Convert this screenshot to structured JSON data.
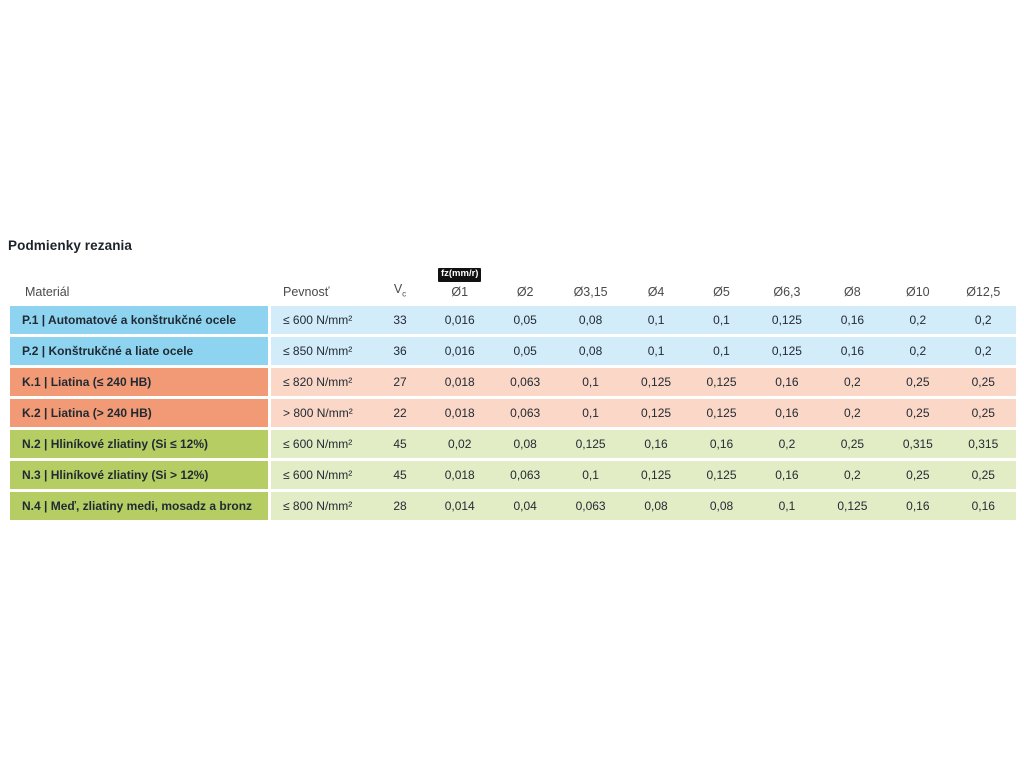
{
  "title": "Podmienky rezania",
  "header": {
    "material": "Materiál",
    "pevnost": "Pevnosť",
    "vc": "V",
    "vc_sub": "c",
    "fz_unit": "fz(mm/r)"
  },
  "chart_data": {
    "type": "table",
    "title": "Podmienky rezania",
    "columns": [
      "Materiál",
      "Pevnosť",
      "Vc",
      "Ø1",
      "Ø2",
      "Ø3,15",
      "Ø4",
      "Ø5",
      "Ø6,3",
      "Ø8",
      "Ø10",
      "Ø12,5"
    ],
    "fz_unit_label": "fz(mm/r)",
    "diameter_columns": [
      "Ø1",
      "Ø2",
      "Ø3,15",
      "Ø4",
      "Ø5",
      "Ø6,3",
      "Ø8",
      "Ø10",
      "Ø12,5"
    ],
    "rows": [
      {
        "group": "P",
        "material": "P.1 | Automatové a konštrukčné ocele",
        "pevnost": "≤ 600 N/mm²",
        "vc": "33",
        "fz": [
          "0,016",
          "0,05",
          "0,08",
          "0,1",
          "0,1",
          "0,125",
          "0,16",
          "0,2",
          "0,2"
        ]
      },
      {
        "group": "P",
        "material": "P.2 | Konštrukčné a liate ocele",
        "pevnost": "≤ 850 N/mm²",
        "vc": "36",
        "fz": [
          "0,016",
          "0,05",
          "0,08",
          "0,1",
          "0,1",
          "0,125",
          "0,16",
          "0,2",
          "0,2"
        ]
      },
      {
        "group": "K",
        "material": "K.1 | Liatina (≤ 240 HB)",
        "pevnost": "≤ 820 N/mm²",
        "vc": "27",
        "fz": [
          "0,018",
          "0,063",
          "0,1",
          "0,125",
          "0,125",
          "0,16",
          "0,2",
          "0,25",
          "0,25"
        ]
      },
      {
        "group": "K",
        "material": "K.2 | Liatina (> 240 HB)",
        "pevnost": "> 800 N/mm²",
        "vc": "22",
        "fz": [
          "0,018",
          "0,063",
          "0,1",
          "0,125",
          "0,125",
          "0,16",
          "0,2",
          "0,25",
          "0,25"
        ]
      },
      {
        "group": "N",
        "material": "N.2 | Hliníkové zliatiny (Si ≤ 12%)",
        "pevnost": "≤ 600 N/mm²",
        "vc": "45",
        "fz": [
          "0,02",
          "0,08",
          "0,125",
          "0,16",
          "0,16",
          "0,2",
          "0,25",
          "0,315",
          "0,315"
        ]
      },
      {
        "group": "N",
        "material": "N.3 | Hliníkové zliatiny (Si > 12%)",
        "pevnost": "≤ 600 N/mm²",
        "vc": "45",
        "fz": [
          "0,018",
          "0,063",
          "0,1",
          "0,125",
          "0,125",
          "0,16",
          "0,2",
          "0,25",
          "0,25"
        ]
      },
      {
        "group": "N",
        "material": "N.4 | Meď, zliatiny medi, mosadz a bronz",
        "pevnost": "≤ 800 N/mm²",
        "vc": "28",
        "fz": [
          "0,014",
          "0,04",
          "0,063",
          "0,08",
          "0,08",
          "0,1",
          "0,125",
          "0,16",
          "0,16"
        ]
      }
    ]
  },
  "colors": {
    "P": {
      "label_bg": "#8ed3ef",
      "data_bg": "#d3ecf9"
    },
    "K": {
      "label_bg": "#f29a76",
      "data_bg": "#fad7c7"
    },
    "N": {
      "label_bg": "#b6cd64",
      "data_bg": "#e2ecc5"
    },
    "badge_bg": "#111111",
    "badge_text": "#ffffff"
  }
}
